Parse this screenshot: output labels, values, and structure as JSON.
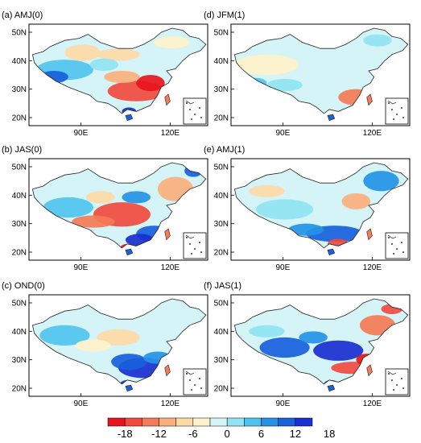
{
  "panels": [
    {
      "title": "(a) AMJ(0)",
      "x_ticks": [
        "90E",
        "120E"
      ],
      "y_ticks": [
        "50N",
        "40N",
        "30N",
        "20N"
      ],
      "anomaly": "south_dry"
    },
    {
      "title": "(d) JFM(1)",
      "x_ticks": [
        "90E",
        "120E"
      ],
      "y_ticks": [
        "50N",
        "40N",
        "30N",
        "20N"
      ],
      "anomaly": "weak"
    },
    {
      "title": "(b) JAS(0)",
      "x_ticks": [
        "90E",
        "120E"
      ],
      "y_ticks": [
        "50N",
        "40N",
        "30N",
        "20N"
      ],
      "anomaly": "central_dry"
    },
    {
      "title": "(e) AMJ(1)",
      "x_ticks": [
        "90E",
        "120E"
      ],
      "y_ticks": [
        "50N",
        "40N",
        "30N",
        "20N"
      ],
      "anomaly": "south_wet"
    },
    {
      "title": "(c) OND(0)",
      "x_ticks": [
        "90E",
        "120E"
      ],
      "y_ticks": [
        "50N",
        "40N",
        "30N",
        "20N"
      ],
      "anomaly": "south_wet_strong"
    },
    {
      "title": "(f) JAS(1)",
      "x_ticks": [
        "90E",
        "120E"
      ],
      "y_ticks": [
        "50N",
        "40N",
        "30N",
        "20N"
      ],
      "anomaly": "central_wet"
    }
  ],
  "colorbar": {
    "labels": [
      "-18",
      "-12",
      "-6",
      "0",
      "6",
      "12",
      "18"
    ],
    "colors": [
      "#e8141c",
      "#f04a3e",
      "#f57a55",
      "#fbb07c",
      "#fdd9a6",
      "#fff1c9",
      "#d4f4f7",
      "#8fe3f2",
      "#4fc3ee",
      "#2493e6",
      "#1860dc",
      "#1a2fd0"
    ]
  },
  "colors": {
    "ocean": "#ffffff",
    "outline": "#222222",
    "frame": "#000000"
  }
}
